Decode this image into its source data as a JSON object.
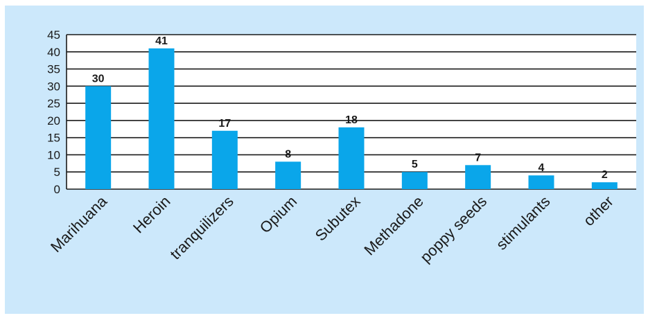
{
  "chart_data": {
    "type": "bar",
    "categories": [
      "Marihuana",
      "Heroin",
      "tranquilizers",
      "Opium",
      "Subutex",
      "Methadone",
      "poppy seeds",
      "stimulants",
      "other"
    ],
    "values": [
      30,
      41,
      17,
      8,
      18,
      5,
      7,
      4,
      2
    ],
    "data_labels": [
      "30",
      "41",
      "17",
      "8",
      "18",
      "5",
      "7",
      "4",
      "2"
    ],
    "yticks": [
      0,
      5,
      10,
      15,
      20,
      25,
      30,
      35,
      40,
      45
    ],
    "ylim": [
      0,
      45
    ],
    "grid": true,
    "legend": "none",
    "title": "",
    "xlabel": "",
    "ylabel": ""
  },
  "colors": {
    "bar": "#0aa6ea",
    "background": "#cce8fb",
    "plot_area": "#ffffff",
    "gridline": "#1a1a1a"
  }
}
